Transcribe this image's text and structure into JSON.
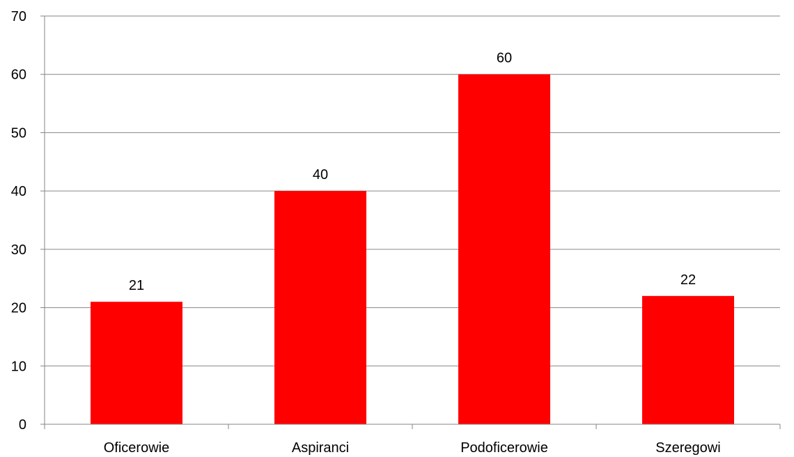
{
  "chart_data": {
    "type": "bar",
    "categories": [
      "Oficerowie",
      "Aspiranci",
      "Podoficerowie",
      "Szeregowi"
    ],
    "values": [
      21,
      40,
      60,
      22
    ],
    "data_labels": [
      "21",
      "40",
      "60",
      "22"
    ],
    "y_ticks": [
      "0",
      "10",
      "20",
      "30",
      "40",
      "50",
      "60",
      "70"
    ],
    "ylim": [
      0,
      70
    ],
    "title": "",
    "xlabel": "",
    "ylabel": "",
    "grid": true,
    "legend": "none",
    "bar_color": "#ff0000"
  }
}
